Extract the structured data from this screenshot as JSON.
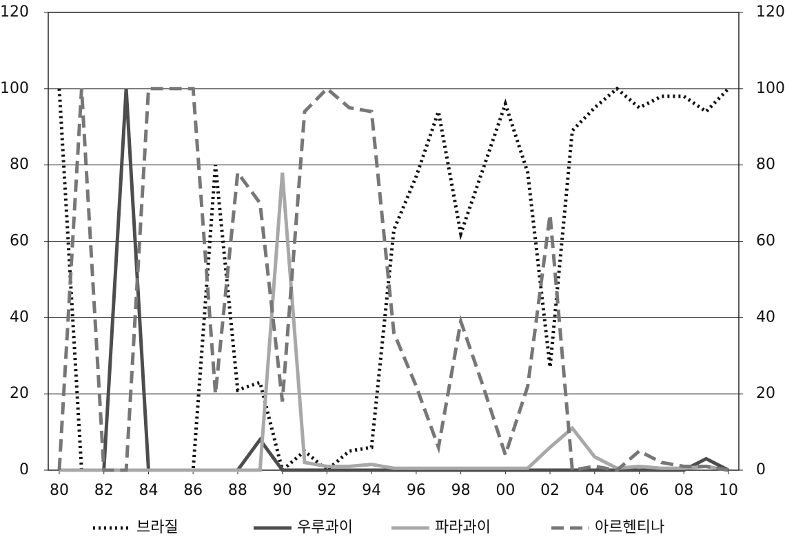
{
  "chart_data": {
    "type": "line",
    "categories": [
      "80",
      null,
      "82",
      null,
      "84",
      null,
      "86",
      null,
      "88",
      null,
      "90",
      null,
      "92",
      null,
      "94",
      null,
      "96",
      null,
      "98",
      null,
      "00",
      null,
      "02",
      null,
      "04",
      null,
      "06",
      null,
      "08",
      null,
      "10"
    ],
    "series": [
      {
        "name": "브라질",
        "color": "#111111",
        "dash": "dotted",
        "values": [
          100,
          0,
          0,
          0,
          0,
          0,
          0,
          80,
          21,
          23,
          0,
          5,
          0,
          5,
          6,
          63,
          77,
          94,
          62,
          79,
          96,
          78,
          27,
          89,
          95,
          100,
          95,
          98,
          98,
          94,
          100
        ]
      },
      {
        "name": "우루과이",
        "color": "#4d4d4d",
        "dash": "solid",
        "values": [
          0,
          0,
          0,
          100,
          0,
          0,
          0,
          0,
          0,
          8,
          0,
          0,
          0,
          0,
          0,
          0,
          0,
          0,
          0,
          0,
          0,
          0,
          0,
          0,
          0,
          0,
          0,
          0,
          0,
          3,
          0
        ]
      },
      {
        "name": "파라과이",
        "color": "#a8a8a8",
        "dash": "solid",
        "values": [
          0,
          0,
          0,
          0,
          0,
          0,
          0,
          0,
          0,
          0,
          78,
          2,
          1,
          1,
          1.5,
          0.5,
          0.5,
          0.5,
          0.5,
          0.5,
          0.5,
          0.5,
          6,
          11,
          3.5,
          0.5,
          1,
          0.5,
          0.5,
          1,
          0
        ]
      },
      {
        "name": "아르헨티나",
        "color": "#777777",
        "dash": "dashed",
        "values": [
          0,
          100,
          0,
          0,
          100,
          100,
          100,
          20,
          78,
          70,
          18,
          94,
          100,
          95,
          94,
          36,
          22,
          6,
          39,
          22,
          4,
          22,
          67,
          0,
          1,
          0,
          5,
          2,
          1,
          1,
          0
        ]
      }
    ],
    "ylim": [
      0,
      120
    ],
    "yticks": [
      0,
      20,
      40,
      60,
      80,
      100,
      120
    ],
    "y2lim": [
      0,
      120
    ],
    "y2ticks": [
      0,
      20,
      40,
      60,
      80,
      100,
      120
    ],
    "grid": true,
    "legend": "bottom"
  }
}
